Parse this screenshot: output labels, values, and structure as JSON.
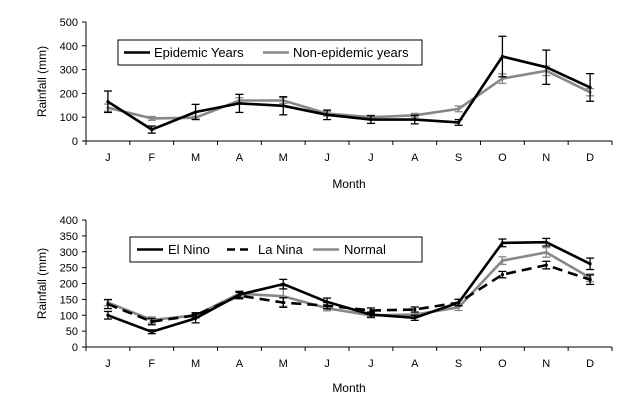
{
  "chart_data": [
    {
      "type": "line",
      "title": "",
      "xlabel": "Month",
      "ylabel": "Rainfall (mm)",
      "categories": [
        "J",
        "F",
        "M",
        "A",
        "M",
        "J",
        "J",
        "A",
        "S",
        "O",
        "N",
        "D"
      ],
      "ylim": [
        0,
        500
      ],
      "yticks": [
        0,
        100,
        200,
        300,
        400,
        500
      ],
      "grid": false,
      "legend_position": "top-left",
      "series": [
        {
          "name": "Epidemic Years",
          "color": "#000000",
          "dash": "solid",
          "values": [
            165,
            48,
            122,
            158,
            148,
            110,
            90,
            90,
            78,
            355,
            310,
            225
          ],
          "errors": [
            45,
            15,
            32,
            38,
            38,
            20,
            16,
            18,
            12,
            85,
            72,
            58
          ]
        },
        {
          "name": "Non-epidemic years",
          "color": "#888888",
          "dash": "solid",
          "values": [
            140,
            95,
            98,
            170,
            170,
            115,
            100,
            108,
            135,
            262,
            295,
            205
          ],
          "errors": [
            15,
            8,
            6,
            12,
            12,
            10,
            8,
            8,
            12,
            20,
            20,
            15
          ]
        }
      ]
    },
    {
      "type": "line",
      "title": "",
      "xlabel": "Month",
      "ylabel": "Rainfall (mm)",
      "categories": [
        "J",
        "F",
        "M",
        "A",
        "M",
        "J",
        "J",
        "A",
        "S",
        "O",
        "N",
        "D"
      ],
      "ylim": [
        0,
        400
      ],
      "yticks": [
        0,
        50,
        100,
        150,
        200,
        250,
        300,
        350,
        400
      ],
      "grid": false,
      "legend_position": "top-left",
      "series": [
        {
          "name": "El Nino",
          "color": "#000000",
          "dash": "solid",
          "values": [
            100,
            48,
            90,
            165,
            198,
            142,
            102,
            92,
            140,
            328,
            330,
            262
          ],
          "errors": [
            12,
            6,
            14,
            10,
            15,
            12,
            8,
            8,
            10,
            12,
            12,
            18
          ]
        },
        {
          "name": "La Nina",
          "color": "#000000",
          "dash": "dashed",
          "values": [
            135,
            80,
            100,
            162,
            140,
            130,
            115,
            118,
            140,
            228,
            258,
            212
          ],
          "errors": [
            14,
            10,
            8,
            10,
            15,
            10,
            8,
            8,
            10,
            10,
            12,
            15
          ]
        },
        {
          "name": "Normal",
          "color": "#888888",
          "dash": "solid",
          "values": [
            140,
            85,
            100,
            168,
            160,
            122,
            100,
            102,
            125,
            272,
            298,
            218
          ],
          "errors": [
            10,
            10,
            6,
            8,
            32,
            8,
            8,
            8,
            10,
            12,
            15,
            12
          ]
        }
      ]
    }
  ]
}
